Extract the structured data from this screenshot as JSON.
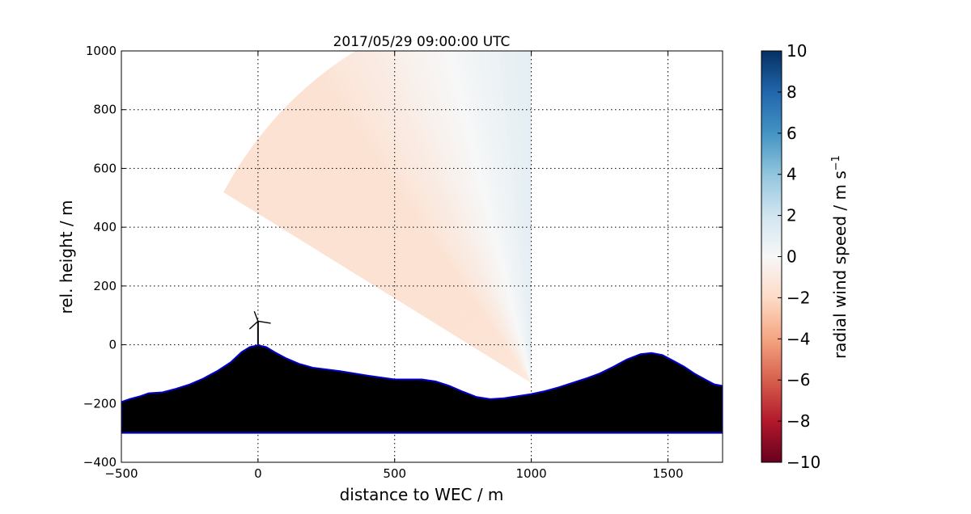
{
  "chart_data": {
    "type": "heatmap",
    "title": "2017/05/29 09:00:00 UTC",
    "xlabel": "distance to WEC / m",
    "ylabel": "rel. height / m",
    "xlim": [
      -500,
      1700
    ],
    "ylim": [
      -400,
      1000
    ],
    "x_ticks": [
      -500,
      0,
      500,
      1000,
      1500
    ],
    "y_ticks": [
      -400,
      -200,
      0,
      200,
      400,
      600,
      800,
      1000
    ],
    "grid": true,
    "colorbar": {
      "label": "radial wind speed / m s",
      "label_superscript": "−1",
      "range": [
        -10,
        10
      ],
      "ticks": [
        10,
        8,
        6,
        4,
        2,
        0,
        -2,
        -4,
        -6,
        -8,
        -10
      ],
      "tick_labels": [
        "10",
        "8",
        "6",
        "4",
        "2",
        "0",
        "−2",
        "−4",
        "−6",
        "−8",
        "−10"
      ],
      "colormap": "RdBu",
      "colors": [
        "#67001f",
        "#b2182b",
        "#d6604d",
        "#f4a582",
        "#fddbc7",
        "#f7f7f7",
        "#d1e5f0",
        "#92c5de",
        "#4393c3",
        "#2166ac",
        "#053061"
      ]
    },
    "scan": {
      "origin": [
        1000,
        -130
      ],
      "angle_range_deg": [
        90,
        150
      ],
      "max_range_m": 1300,
      "radial_wind_low_angle_m_s": 1,
      "radial_wind_high_angle_m_s": -1.5
    },
    "terrain_profile": {
      "fill_color": "#000000",
      "edge_color": "#0000cc",
      "base_height": -300,
      "points": [
        [
          -500,
          -195
        ],
        [
          -470,
          -185
        ],
        [
          -430,
          -175
        ],
        [
          -400,
          -165
        ],
        [
          -350,
          -162
        ],
        [
          -300,
          -150
        ],
        [
          -250,
          -135
        ],
        [
          -200,
          -115
        ],
        [
          -150,
          -90
        ],
        [
          -100,
          -60
        ],
        [
          -60,
          -25
        ],
        [
          -30,
          -8
        ],
        [
          0,
          -2
        ],
        [
          30,
          -8
        ],
        [
          60,
          -25
        ],
        [
          100,
          -45
        ],
        [
          150,
          -65
        ],
        [
          200,
          -78
        ],
        [
          300,
          -90
        ],
        [
          400,
          -105
        ],
        [
          500,
          -118
        ],
        [
          600,
          -118
        ],
        [
          650,
          -125
        ],
        [
          700,
          -140
        ],
        [
          750,
          -160
        ],
        [
          800,
          -178
        ],
        [
          850,
          -185
        ],
        [
          900,
          -182
        ],
        [
          950,
          -175
        ],
        [
          1000,
          -168
        ],
        [
          1050,
          -158
        ],
        [
          1100,
          -145
        ],
        [
          1150,
          -130
        ],
        [
          1200,
          -115
        ],
        [
          1250,
          -98
        ],
        [
          1300,
          -75
        ],
        [
          1350,
          -50
        ],
        [
          1400,
          -32
        ],
        [
          1440,
          -28
        ],
        [
          1480,
          -35
        ],
        [
          1520,
          -55
        ],
        [
          1560,
          -75
        ],
        [
          1600,
          -100
        ],
        [
          1640,
          -120
        ],
        [
          1670,
          -135
        ],
        [
          1700,
          -140
        ]
      ]
    },
    "turbine": {
      "x": 0,
      "hub_height": 80
    }
  }
}
